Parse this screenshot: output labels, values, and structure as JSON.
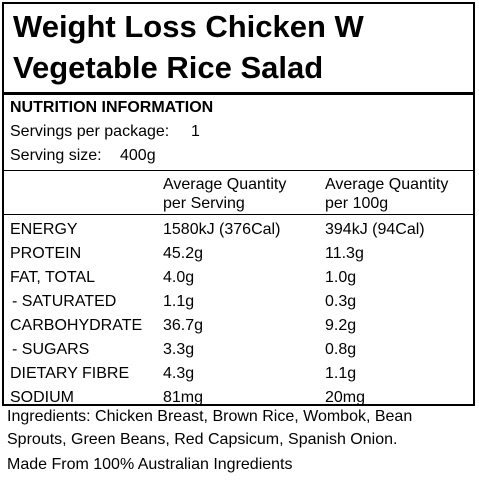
{
  "title_line1": "Weight Loss Chicken W",
  "title_line2": "Vegetable Rice Salad",
  "heading": "NUTRITION INFORMATION",
  "servings_label": "Servings per package:",
  "servings_value": "1",
  "serving_size_label": "Serving size:",
  "serving_size_value": "400g",
  "col_headers": {
    "per_serving_line1": "Average Quantity",
    "per_serving_line2": "per Serving",
    "per_100g_line1": "Average Quantity",
    "per_100g_line2": "per 100g"
  },
  "rows": [
    {
      "name": "ENERGY",
      "per_serving": "1580kJ (376Cal)",
      "per_100g": "394kJ (94Cal)"
    },
    {
      "name": "PROTEIN",
      "per_serving": "45.2g",
      "per_100g": "11.3g"
    },
    {
      "name": "FAT, TOTAL",
      "per_serving": "4.0g",
      "per_100g": "1.0g"
    },
    {
      "name": "- SATURATED",
      "per_serving": "1.1g",
      "per_100g": "0.3g"
    },
    {
      "name": "CARBOHYDRATE",
      "per_serving": "36.7g",
      "per_100g": "9.2g"
    },
    {
      "name": "- SUGARS",
      "per_serving": "3.3g",
      "per_100g": "0.8g"
    },
    {
      "name": "DIETARY FIBRE",
      "per_serving": "4.3g",
      "per_100g": "1.1g"
    },
    {
      "name": "SODIUM",
      "per_serving": "81mg",
      "per_100g": "20mg"
    }
  ],
  "ingredients_line1": "Ingredients: Chicken Breast, Brown Rice, Wombok, Bean",
  "ingredients_line2": "Sprouts, Green Beans, Red Capsicum, Spanish Onion.",
  "origin": "Made From 100% Australian Ingredients"
}
